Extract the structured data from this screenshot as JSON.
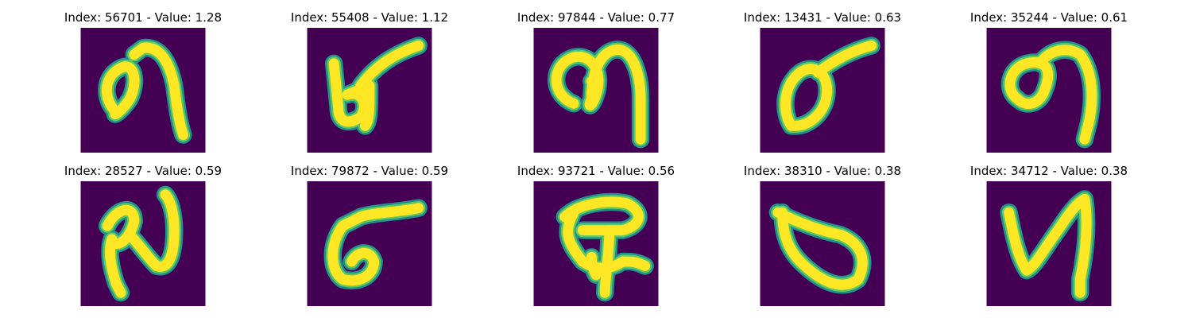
{
  "colors": {
    "background": "#440154",
    "stroke_core": "#fde725",
    "stroke_mid": "#5ec962",
    "stroke_edge": "#21918c"
  },
  "panels": [
    {
      "title": "Index: 56701 - Value: 1.28",
      "glyph": "glyph-1"
    },
    {
      "title": "Index: 55408 - Value: 1.12",
      "glyph": "glyph-2"
    },
    {
      "title": "Index: 97844 - Value: 0.77",
      "glyph": "glyph-3"
    },
    {
      "title": "Index: 13431 - Value: 0.63",
      "glyph": "glyph-4"
    },
    {
      "title": "Index: 35244 - Value: 0.61",
      "glyph": "glyph-5"
    },
    {
      "title": "Index: 28527 - Value: 0.59",
      "glyph": "glyph-6"
    },
    {
      "title": "Index: 79872 - Value: 0.59",
      "glyph": "glyph-7"
    },
    {
      "title": "Index: 93721 - Value: 0.56",
      "glyph": "glyph-8"
    },
    {
      "title": "Index: 38310 - Value: 0.38",
      "glyph": "glyph-9"
    },
    {
      "title": "Index: 34712 - Value: 0.38",
      "glyph": "glyph-10"
    }
  ]
}
